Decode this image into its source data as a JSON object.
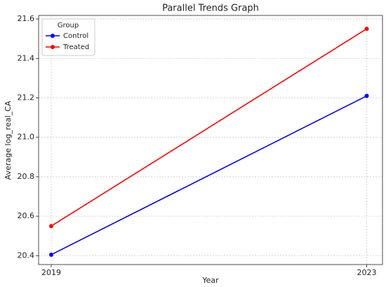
{
  "chart_data": {
    "type": "line",
    "title": "Parallel Trends Graph",
    "x_label": "Year",
    "y_label": "Average log_real_CA",
    "x": [
      2019,
      2023
    ],
    "xlim": [
      2018.84,
      2023.2
    ],
    "xticks": [
      2019,
      2023
    ],
    "ylim": [
      20.355,
      21.618
    ],
    "yticks": [
      20.4,
      20.6,
      20.8,
      {
        "value": 21,
        "label": "21.0"
      },
      21.2,
      21.4,
      21.6
    ],
    "grid": true,
    "legend_title": "Group",
    "legend_location": "upper left",
    "series": [
      {
        "name": "Control",
        "color": "#0000ff",
        "values": [
          20.405,
          21.21
        ]
      },
      {
        "name": "Treated",
        "color": "#ff0000",
        "values": [
          20.55,
          21.55
        ]
      }
    ]
  }
}
